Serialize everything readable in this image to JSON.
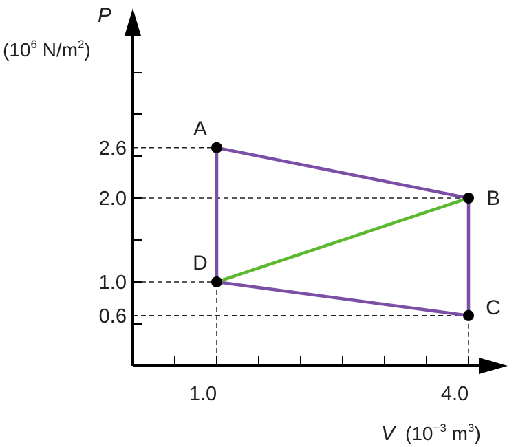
{
  "chart_data": {
    "type": "line",
    "ylabel": {
      "symbol": "P",
      "unit_prefix": "(10",
      "unit_exp": "6",
      "unit_mid": " N/m",
      "unit_exp2": "2",
      "unit_suffix": ")"
    },
    "xlabel": {
      "symbol": "V",
      "unit_prefix": "(10",
      "unit_exp": "−3",
      "unit_mid": " m",
      "unit_exp2": "3",
      "unit_suffix": ")"
    },
    "xlim": [
      0,
      4.4
    ],
    "ylim": [
      0,
      4.2
    ],
    "x_ticks": [
      0.5,
      1.0,
      1.5,
      2.0,
      2.5,
      3.0,
      3.5,
      4.0
    ],
    "y_ticks": [
      0.5,
      1.0,
      1.5,
      2.0,
      2.5,
      3.0,
      3.5
    ],
    "x_tick_labels": [
      {
        "value": 1.0,
        "label": "1.0"
      },
      {
        "value": 4.0,
        "label": "4.0"
      }
    ],
    "y_tick_labels": [
      {
        "value": 2.6,
        "label": "2.6"
      },
      {
        "value": 2.0,
        "label": "2.0"
      },
      {
        "value": 1.0,
        "label": "1.0"
      },
      {
        "value": 0.6,
        "label": "0.6"
      }
    ],
    "points": [
      {
        "name": "A",
        "x": 1.0,
        "y": 2.6
      },
      {
        "name": "B",
        "x": 4.0,
        "y": 2.0
      },
      {
        "name": "C",
        "x": 4.0,
        "y": 0.6
      },
      {
        "name": "D",
        "x": 1.0,
        "y": 1.0
      }
    ],
    "segments": [
      {
        "from": "A",
        "to": "B",
        "color": "#7b4fa6"
      },
      {
        "from": "B",
        "to": "C",
        "color": "#7b4fa6"
      },
      {
        "from": "C",
        "to": "D",
        "color": "#7b4fa6"
      },
      {
        "from": "D",
        "to": "A",
        "color": "#7b4fa6"
      },
      {
        "from": "D",
        "to": "B",
        "color": "#5cb82e"
      }
    ],
    "guides": {
      "horizontal": [
        {
          "y": 2.6,
          "x_end": 1.0
        },
        {
          "y": 2.0,
          "x_end": 4.0
        },
        {
          "y": 1.0,
          "x_end": 1.0
        },
        {
          "y": 0.6,
          "x_end": 4.0
        }
      ],
      "vertical": [
        {
          "x": 1.0,
          "y_end": 1.0
        },
        {
          "x": 4.0,
          "y_end": 0.6
        }
      ]
    },
    "grid": false,
    "colors": {
      "axis": "#000000",
      "guide": "#231f20",
      "point": "#000000",
      "purple": "#7b4fa6",
      "green": "#5cb82e"
    }
  }
}
